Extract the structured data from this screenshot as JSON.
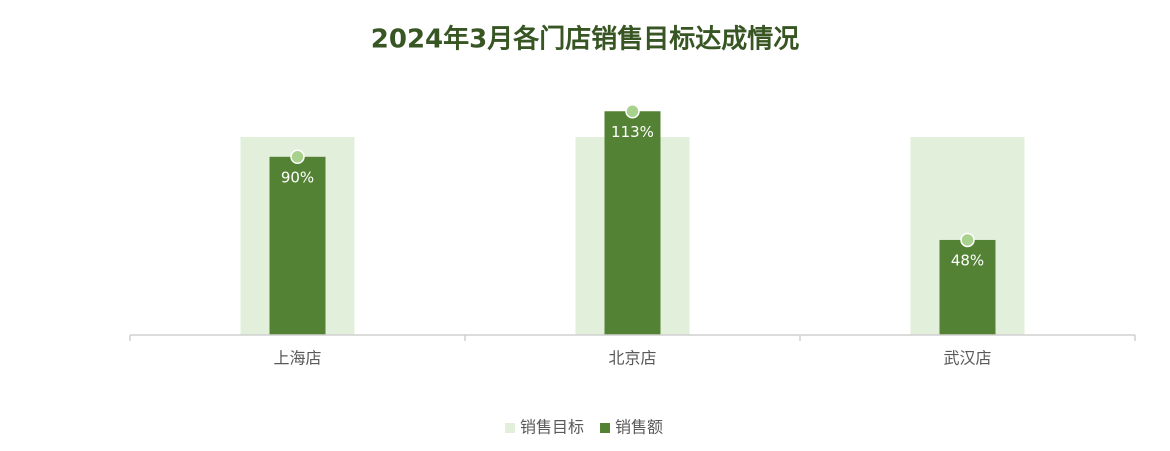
{
  "chart_data": {
    "type": "bar",
    "title": "2024年3月各门店销售目标达成情况",
    "categories": [
      "上海店",
      "北京店",
      "武汉店"
    ],
    "series": [
      {
        "name": "销售目标",
        "color": "#e2efda",
        "values": [
          100,
          100,
          100
        ]
      },
      {
        "name": "销售额",
        "color": "#548235",
        "values": [
          90,
          113,
          48
        ],
        "value_labels": [
          "90%",
          "113%",
          "48%"
        ]
      }
    ],
    "ylim": [
      0,
      120
    ],
    "legend": "bottom"
  }
}
